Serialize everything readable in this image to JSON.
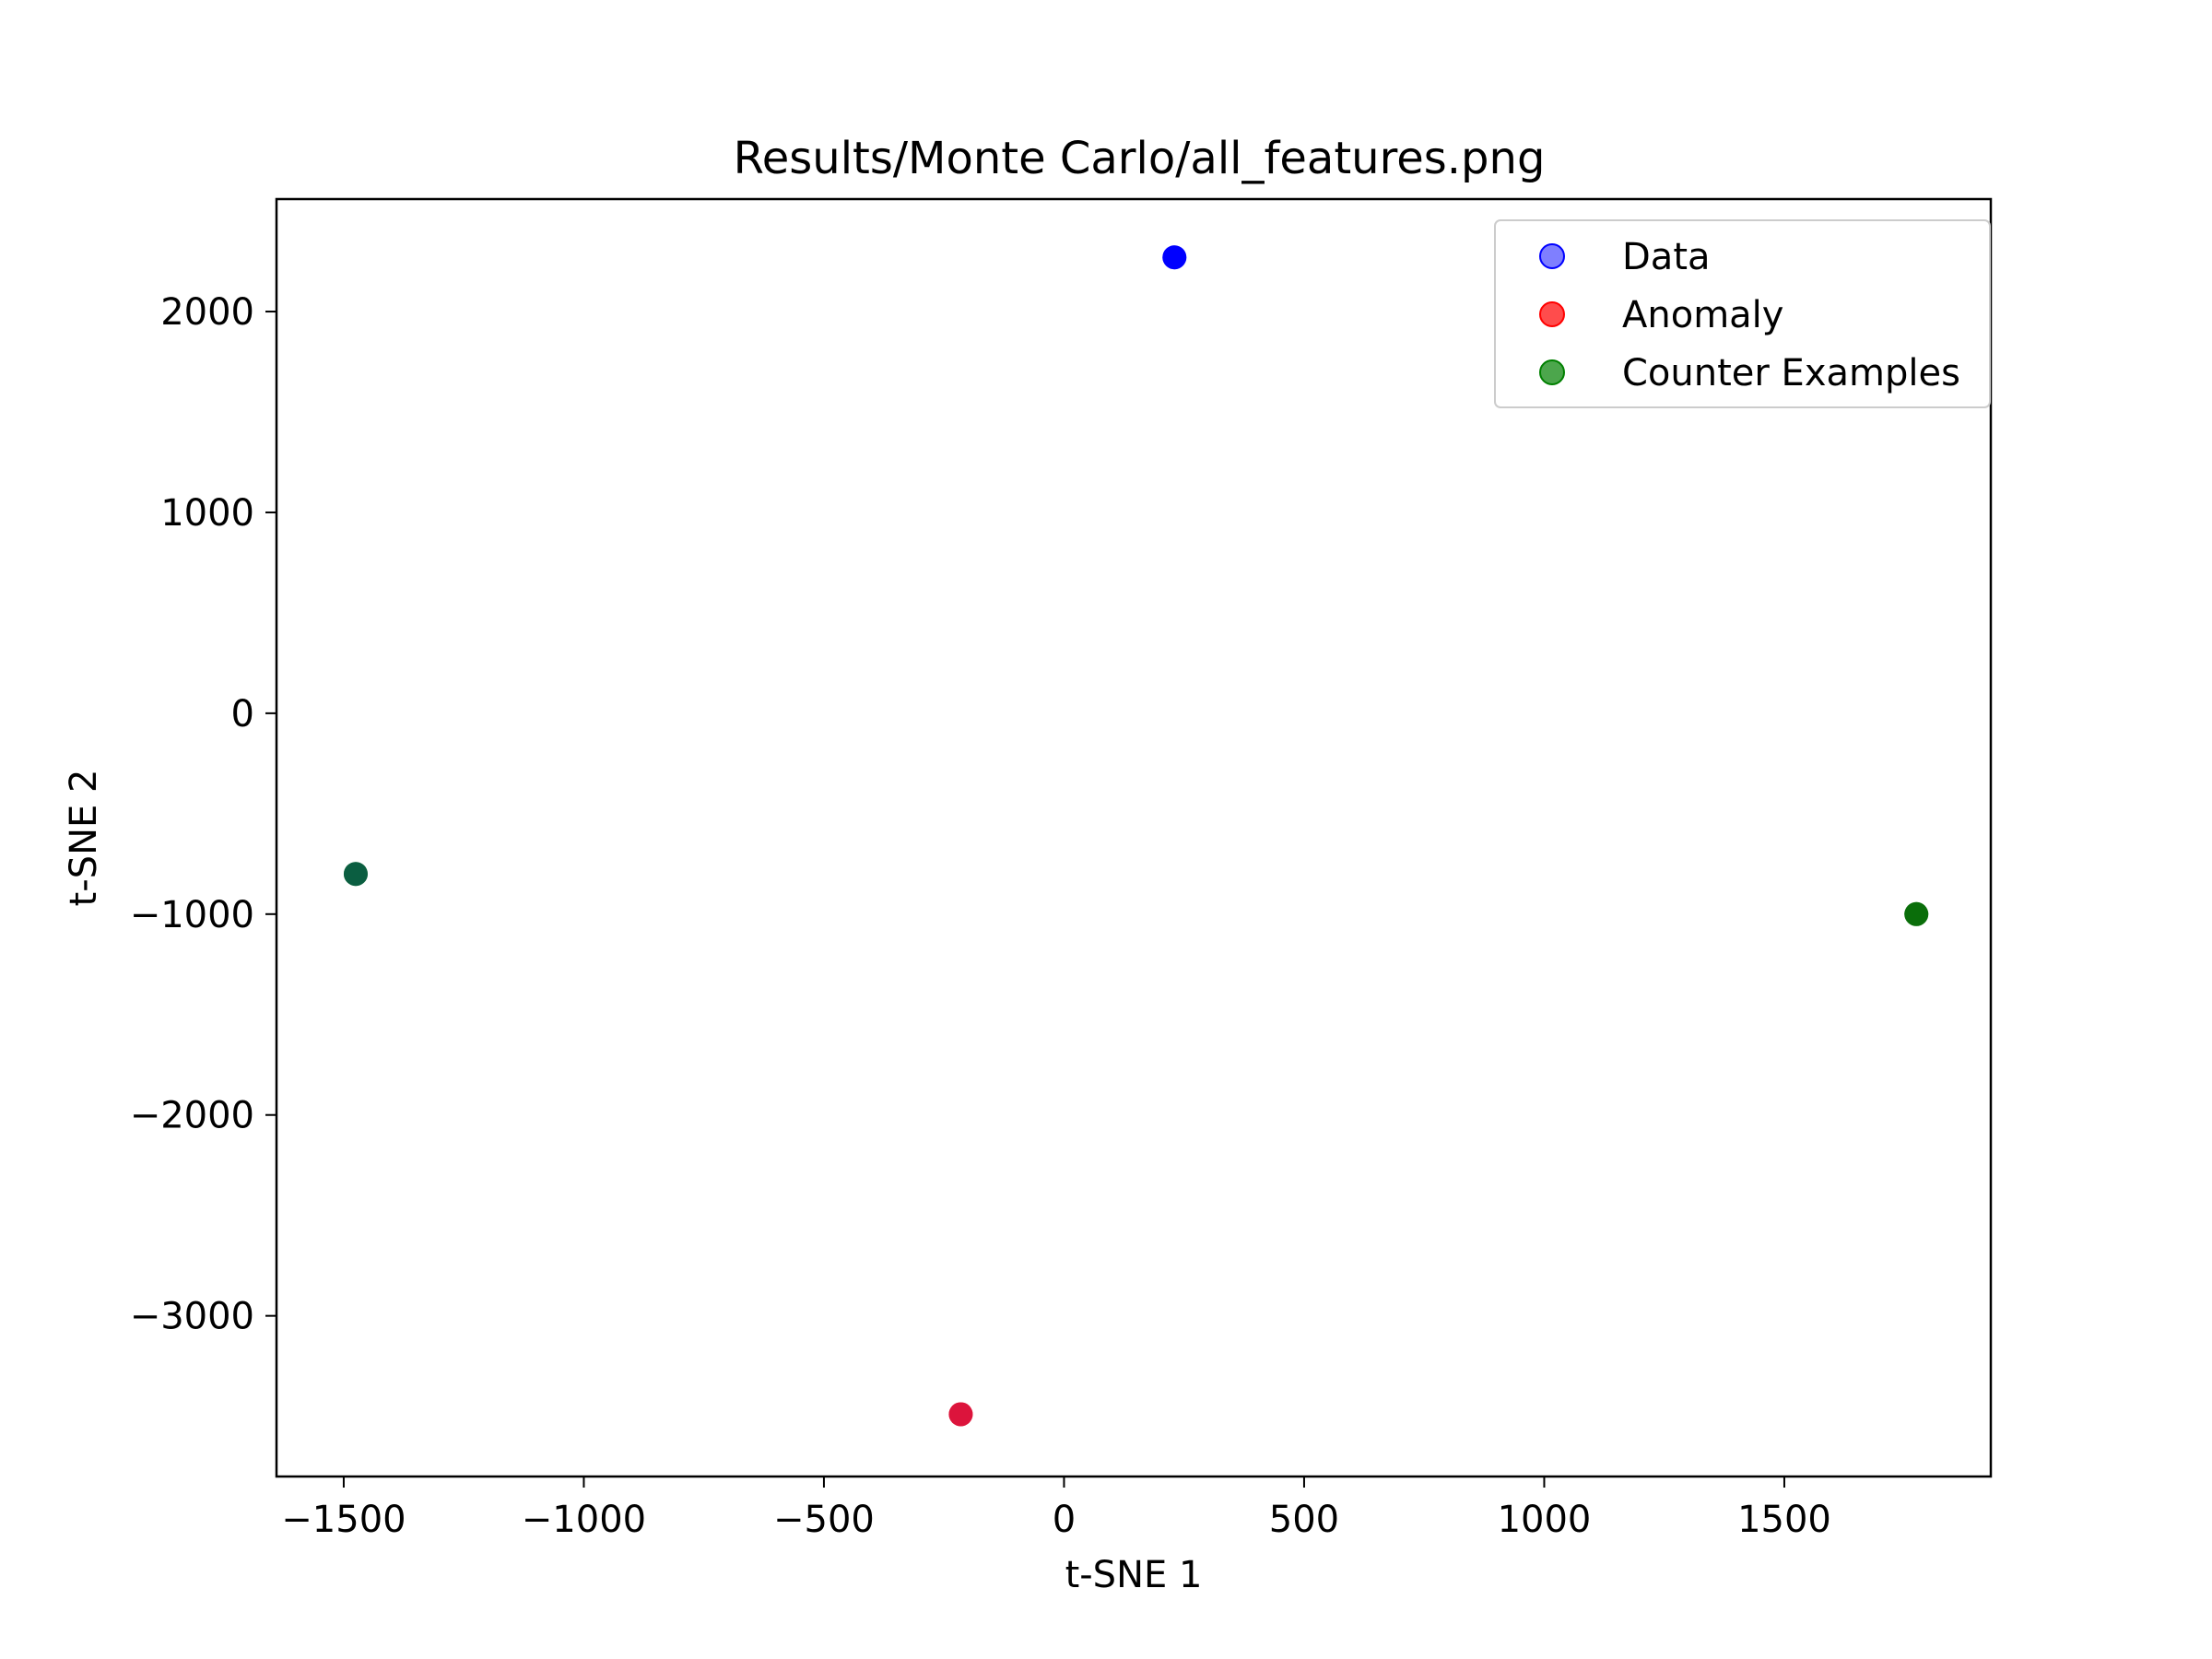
{
  "chart_data": {
    "type": "scatter",
    "title": "Results/Monte Carlo/all_features.png",
    "xlabel": "t-SNE 1",
    "ylabel": "t-SNE 2",
    "xlim": [
      -1640,
      1930
    ],
    "ylim": [
      -3800,
      2560
    ],
    "xticks": [
      -1500,
      -1000,
      -500,
      0,
      500,
      1000,
      1500
    ],
    "xtick_labels": [
      "−1500",
      "−1000",
      "−500",
      "0",
      "500",
      "1000",
      "1500"
    ],
    "yticks": [
      -3000,
      -2000,
      -1000,
      0,
      1000,
      2000
    ],
    "ytick_labels": [
      "−3000",
      "−2000",
      "−1000",
      "0",
      "1000",
      "2000"
    ],
    "grid": false,
    "legend_position": "top-right",
    "series": [
      {
        "name": "Data",
        "color": "#0000ff",
        "alpha": 0.5,
        "points": [
          {
            "x": 230,
            "y": 2270
          }
        ]
      },
      {
        "name": "Anomaly",
        "color": "#ff0000",
        "alpha": 0.7,
        "points": [
          {
            "x": -215,
            "y": -3490
          }
        ]
      },
      {
        "name": "Counter Examples",
        "color": "#008000",
        "alpha": 0.7,
        "points": [
          {
            "x": -1475,
            "y": -800
          },
          {
            "x": 1775,
            "y": -1000
          }
        ]
      }
    ],
    "overlay_points": [
      {
        "x": 230,
        "y": 2270,
        "color": "#0000ff"
      },
      {
        "x": -215,
        "y": -3490,
        "color": "#dc143c"
      },
      {
        "x": -1475,
        "y": -800,
        "color": "#0b5e41"
      },
      {
        "x": 1775,
        "y": -1000,
        "color": "#0a6e0a"
      }
    ]
  }
}
